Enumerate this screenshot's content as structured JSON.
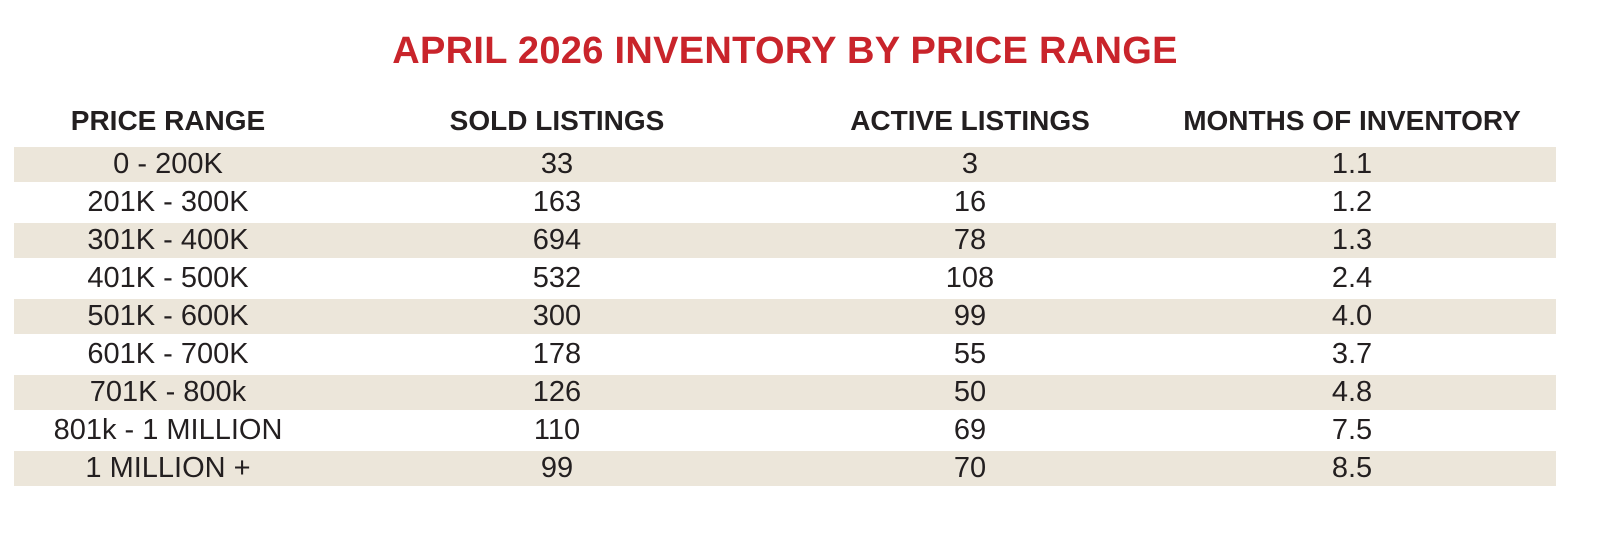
{
  "chart_data": {
    "type": "table",
    "title": "APRIL 2026 INVENTORY BY PRICE RANGE",
    "columns": [
      "PRICE RANGE",
      "SOLD LISTINGS",
      "ACTIVE LISTINGS",
      "MONTHS OF INVENTORY"
    ],
    "rows": [
      [
        "0 - 200K",
        "33",
        "3",
        "1.1"
      ],
      [
        "201K - 300K",
        "163",
        "16",
        "1.2"
      ],
      [
        "301K - 400K",
        "694",
        "78",
        "1.3"
      ],
      [
        "401K - 500K",
        "532",
        "108",
        "2.4"
      ],
      [
        "501K - 600K",
        "300",
        "99",
        "4.0"
      ],
      [
        "601K - 700K",
        "178",
        "55",
        "3.7"
      ],
      [
        "701K - 800k",
        "126",
        "50",
        "4.8"
      ],
      [
        "801k - 1 MILLION",
        "110",
        "69",
        "7.5"
      ],
      [
        "1 MILLION +",
        "99",
        "70",
        "8.5"
      ]
    ],
    "colors": {
      "title": "#c9242b",
      "band": "#ece6da",
      "text": "#231f20"
    }
  }
}
